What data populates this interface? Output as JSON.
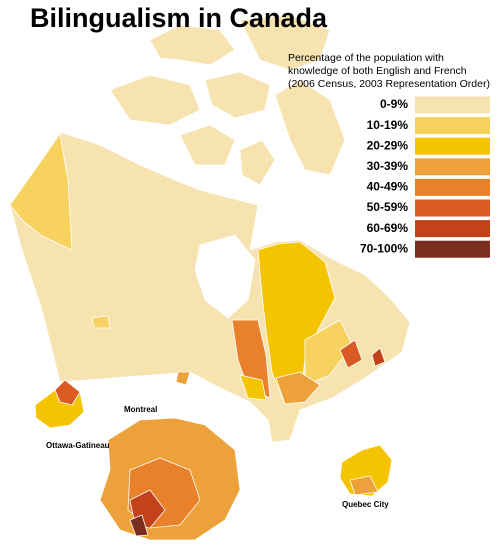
{
  "title": "Bilingualism in Canada",
  "legend": {
    "caption": [
      "Percentage of the population with",
      "knowledge of both English and French",
      "(2006 Census, 2003 Representation Order)"
    ],
    "items": [
      {
        "label": "0-9%",
        "color": "#f6e3b0"
      },
      {
        "label": "10-19%",
        "color": "#f7d25e"
      },
      {
        "label": "20-29%",
        "color": "#f5c400"
      },
      {
        "label": "30-39%",
        "color": "#eda13a"
      },
      {
        "label": "40-49%",
        "color": "#e9802a"
      },
      {
        "label": "50-59%",
        "color": "#d95a22"
      },
      {
        "label": "60-69%",
        "color": "#c2421c"
      },
      {
        "label": "70-100%",
        "color": "#7a2e1e"
      }
    ]
  },
  "insets": [
    {
      "label": "Ottawa-Gatineau"
    },
    {
      "label": "Montreal"
    },
    {
      "label": "Quebec City"
    }
  ]
}
